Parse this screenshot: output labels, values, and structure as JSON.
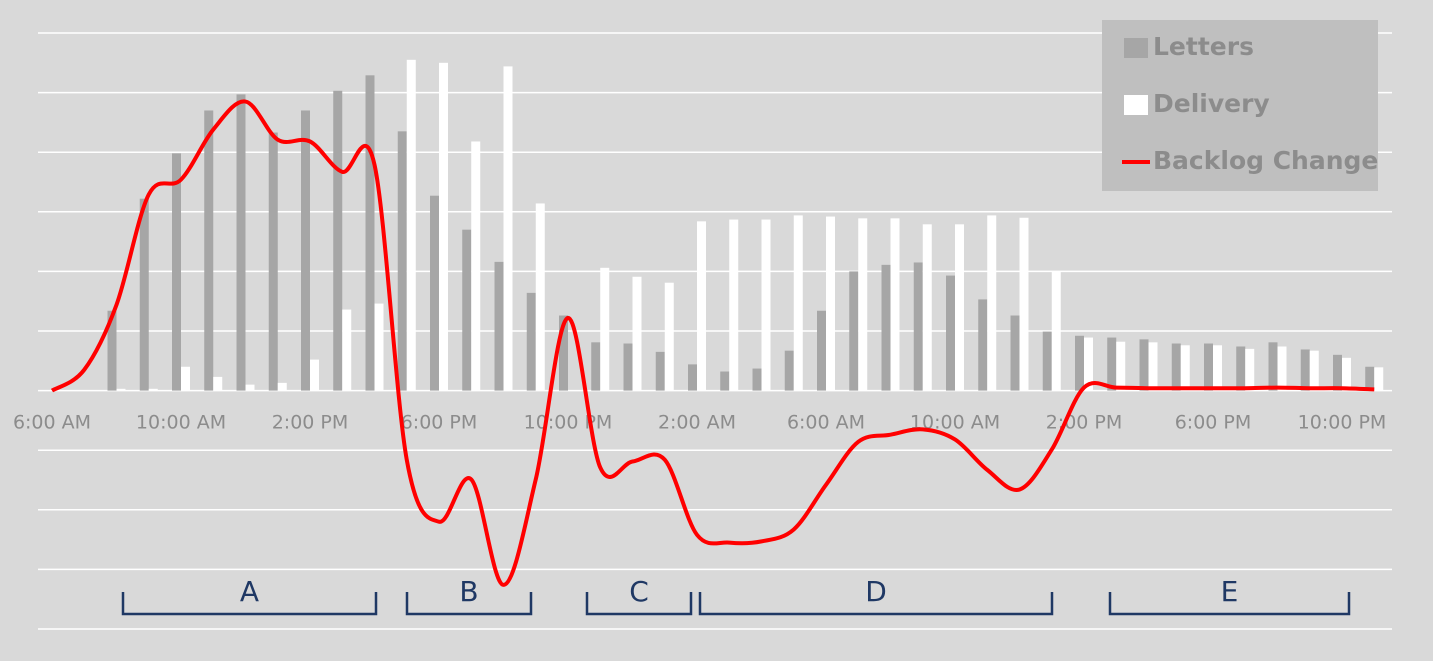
{
  "chart_data": {
    "type": "bar_line",
    "categories": [
      "6:00 AM",
      null,
      null,
      null,
      "10:00 AM",
      null,
      null,
      null,
      "2:00 PM",
      null,
      null,
      null,
      "6:00 PM",
      null,
      null,
      null,
      "10:00 PM",
      null,
      null,
      null,
      "2:00 AM",
      null,
      null,
      null,
      "6:00 AM",
      null,
      null,
      null,
      "10:00 AM",
      null,
      null,
      null,
      "2:00 PM",
      null,
      null,
      null,
      "6:00 PM",
      null,
      null,
      null,
      "10:00 PM",
      null
    ],
    "series": [
      {
        "name": "Letters",
        "kind": "bar",
        "color": "#a6a6a6",
        "values": [
          null,
          null,
          1.34,
          3.22,
          3.98,
          4.7,
          4.97,
          4.33,
          4.7,
          5.03,
          5.29,
          4.35,
          3.27,
          2.7,
          2.16,
          1.64,
          1.26,
          0.81,
          0.79,
          0.65,
          0.44,
          0.32,
          0.37,
          0.67,
          1.34,
          2.0,
          2.11,
          2.15,
          1.93,
          1.53,
          1.26,
          0.99,
          0.92,
          0.89,
          0.86,
          0.79,
          0.79,
          0.74,
          0.81,
          0.69,
          0.6,
          0.4
        ]
      },
      {
        "name": "Delivery",
        "kind": "bar",
        "color": "#ffffff",
        "values": [
          null,
          null,
          0.03,
          0.03,
          0.4,
          0.23,
          0.1,
          0.13,
          0.52,
          1.36,
          1.46,
          5.55,
          5.5,
          4.18,
          5.44,
          3.14,
          null,
          2.06,
          1.91,
          1.81,
          2.84,
          2.87,
          2.87,
          2.94,
          2.92,
          2.89,
          2.89,
          2.79,
          2.79,
          2.94,
          2.9,
          2.0,
          0.89,
          0.82,
          0.81,
          0.76,
          0.76,
          0.7,
          0.74,
          0.67,
          0.55,
          0.39
        ]
      },
      {
        "name": "Backlog Change",
        "kind": "line",
        "color": "#ff0000",
        "values": [
          0,
          0.35,
          1.44,
          3.29,
          3.54,
          4.38,
          4.85,
          4.21,
          4.18,
          3.67,
          3.79,
          -1.16,
          -2.2,
          -1.49,
          -3.26,
          -1.49,
          1.22,
          -1.29,
          -1.19,
          -1.16,
          -2.42,
          -2.55,
          -2.53,
          -2.33,
          -1.58,
          -0.86,
          -0.74,
          -0.65,
          -0.82,
          -1.33,
          -1.66,
          -0.99,
          0.05,
          0.05,
          0.04,
          0.04,
          0.04,
          0.04,
          0.05,
          0.04,
          0.04,
          0.02
        ]
      }
    ],
    "ylim": [
      -4,
      6
    ],
    "yticks": [
      -4,
      -3,
      -2,
      -1,
      0,
      1,
      2,
      3,
      4,
      5,
      6
    ],
    "grid": true,
    "legend": "upper right",
    "annotations": [
      "A",
      "B",
      "C",
      "D",
      "E"
    ]
  }
}
